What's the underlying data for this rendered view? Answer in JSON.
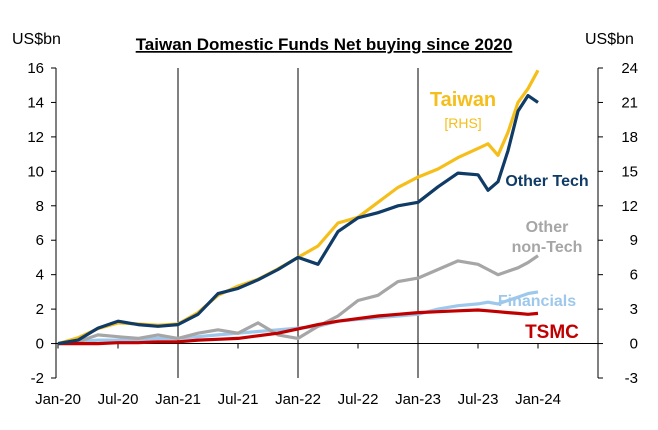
{
  "chart_data": {
    "type": "line",
    "title": "Taiwan Domestic Funds Net buying since 2020",
    "left_axis_label": "US$bn",
    "right_axis_label": "US$bn",
    "ylim_left": [
      -2,
      16
    ],
    "ylim_right": [
      -3,
      24
    ],
    "left_ticks": [
      "-2",
      "0",
      "2",
      "4",
      "6",
      "8",
      "10",
      "12",
      "14",
      "16"
    ],
    "right_ticks": [
      "-3",
      "0",
      "3",
      "6",
      "9",
      "12",
      "15",
      "18",
      "21",
      "24"
    ],
    "x_ticks": [
      "Jan-20",
      "Jul-20",
      "Jan-21",
      "Jul-21",
      "Jan-22",
      "Jul-22",
      "Jan-23",
      "Jul-23",
      "Jan-24"
    ],
    "vertical_gridlines_at": [
      "Jan-21",
      "Jan-22",
      "Jan-23"
    ],
    "series": [
      {
        "name": "Taiwan",
        "axis": "right",
        "color": "#F5BE1A",
        "label": "Taiwan",
        "sublabel": "[RHS]",
        "x": [
          "2020-01",
          "2020-03",
          "2020-05",
          "2020-07",
          "2020-09",
          "2020-11",
          "2021-01",
          "2021-03",
          "2021-05",
          "2021-07",
          "2021-09",
          "2021-11",
          "2022-01",
          "2022-03",
          "2022-05",
          "2022-07",
          "2022-09",
          "2022-11",
          "2023-01",
          "2023-03",
          "2023-05",
          "2023-07",
          "2023-08",
          "2023-09",
          "2023-10",
          "2023-11",
          "2023-12",
          "2024-01"
        ],
        "values": [
          0,
          0.5,
          1.3,
          1.8,
          1.7,
          1.6,
          1.7,
          2.7,
          4.2,
          5,
          5.6,
          6.5,
          7.5,
          8.5,
          10.5,
          11,
          12.3,
          13.6,
          14.5,
          15.2,
          16.2,
          17,
          17.4,
          16.4,
          18.4,
          21,
          22.2,
          23.8
        ]
      },
      {
        "name": "Other Tech",
        "axis": "left",
        "color": "#0F3B66",
        "label": "Other Tech",
        "x": [
          "2020-01",
          "2020-03",
          "2020-05",
          "2020-07",
          "2020-09",
          "2020-11",
          "2021-01",
          "2021-03",
          "2021-05",
          "2021-07",
          "2021-09",
          "2021-11",
          "2022-01",
          "2022-03",
          "2022-05",
          "2022-07",
          "2022-09",
          "2022-11",
          "2023-01",
          "2023-03",
          "2023-05",
          "2023-07",
          "2023-08",
          "2023-09",
          "2023-10",
          "2023-11",
          "2023-12",
          "2024-01"
        ],
        "values": [
          0,
          0.2,
          0.9,
          1.3,
          1.1,
          1,
          1.1,
          1.7,
          2.9,
          3.2,
          3.7,
          4.3,
          5,
          4.6,
          6.5,
          7.3,
          7.6,
          8,
          8.2,
          9.1,
          9.9,
          9.8,
          8.9,
          9.4,
          11.2,
          13.5,
          14.4,
          14
        ]
      },
      {
        "name": "Other non-Tech",
        "axis": "left",
        "color": "#A6A6A6",
        "label": "Other\nnon-Tech",
        "x": [
          "2020-01",
          "2020-03",
          "2020-05",
          "2020-07",
          "2020-09",
          "2020-11",
          "2021-01",
          "2021-03",
          "2021-05",
          "2021-07",
          "2021-09",
          "2021-11",
          "2022-01",
          "2022-03",
          "2022-05",
          "2022-07",
          "2022-09",
          "2022-11",
          "2023-01",
          "2023-03",
          "2023-05",
          "2023-07",
          "2023-08",
          "2023-09",
          "2023-10",
          "2023-11",
          "2023-12",
          "2024-01"
        ],
        "values": [
          0,
          0.1,
          0.5,
          0.4,
          0.3,
          0.5,
          0.3,
          0.6,
          0.8,
          0.6,
          1.2,
          0.5,
          0.3,
          1,
          1.6,
          2.5,
          2.8,
          3.6,
          3.8,
          4.3,
          4.8,
          4.6,
          4.3,
          4,
          4.2,
          4.4,
          4.7,
          5.1
        ]
      },
      {
        "name": "Financials",
        "axis": "left",
        "color": "#9DC8EC",
        "label": "Financials",
        "x": [
          "2020-01",
          "2020-03",
          "2020-05",
          "2020-07",
          "2020-09",
          "2020-11",
          "2021-01",
          "2021-03",
          "2021-05",
          "2021-07",
          "2021-09",
          "2021-11",
          "2022-01",
          "2022-03",
          "2022-05",
          "2022-07",
          "2022-09",
          "2022-11",
          "2023-01",
          "2023-03",
          "2023-05",
          "2023-07",
          "2023-08",
          "2023-09",
          "2023-10",
          "2023-11",
          "2023-12",
          "2024-01"
        ],
        "values": [
          0,
          0.1,
          0.2,
          0.2,
          0.2,
          0.3,
          0.3,
          0.4,
          0.5,
          0.6,
          0.7,
          0.8,
          0.9,
          1,
          1.3,
          1.4,
          1.5,
          1.6,
          1.7,
          2,
          2.2,
          2.3,
          2.4,
          2.3,
          2.5,
          2.7,
          2.9,
          3
        ]
      },
      {
        "name": "TSMC",
        "axis": "left",
        "color": "#C00000",
        "label": "TSMC",
        "x": [
          "2020-01",
          "2020-03",
          "2020-05",
          "2020-07",
          "2020-09",
          "2020-11",
          "2021-01",
          "2021-03",
          "2021-05",
          "2021-07",
          "2021-09",
          "2021-11",
          "2022-01",
          "2022-03",
          "2022-05",
          "2022-07",
          "2022-09",
          "2022-11",
          "2023-01",
          "2023-03",
          "2023-05",
          "2023-07",
          "2023-08",
          "2023-09",
          "2023-10",
          "2023-11",
          "2023-12",
          "2024-01"
        ],
        "values": [
          0,
          0,
          0,
          0.05,
          0.05,
          0.1,
          0.1,
          0.2,
          0.25,
          0.3,
          0.45,
          0.6,
          0.85,
          1.1,
          1.3,
          1.45,
          1.6,
          1.7,
          1.8,
          1.85,
          1.9,
          1.95,
          1.9,
          1.85,
          1.8,
          1.75,
          1.7,
          1.75
        ]
      }
    ]
  }
}
